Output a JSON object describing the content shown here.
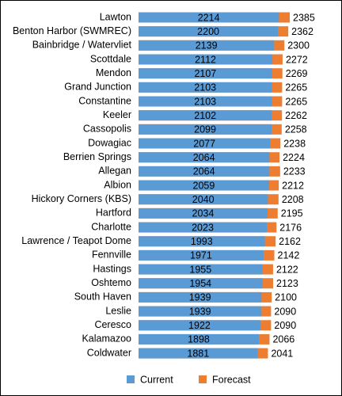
{
  "chart_data": {
    "type": "bar",
    "orientation": "horizontal",
    "overlap": true,
    "categories": [
      "Lawton",
      "Benton Harbor (SWMREC)",
      "Bainbridge / Watervliet",
      "Scottdale",
      "Mendon",
      "Grand Junction",
      "Constantine",
      "Keeler",
      "Cassopolis",
      "Dowagiac",
      "Berrien Springs",
      "Allegan",
      "Albion",
      "Hickory Corners (KBS)",
      "Hartford",
      "Charlotte",
      "Lawrence / Teapot Dome",
      "Fennville",
      "Hastings",
      "Oshtemo",
      "South Haven",
      "Leslie",
      "Ceresco",
      "Kalamazoo",
      "Coldwater"
    ],
    "series": [
      {
        "name": "Current",
        "color": "#5b9bd5",
        "values": [
          2214,
          2200,
          2139,
          2112,
          2107,
          2103,
          2103,
          2102,
          2099,
          2077,
          2064,
          2064,
          2059,
          2040,
          2034,
          2023,
          1993,
          1971,
          1955,
          1954,
          1939,
          1939,
          1922,
          1898,
          1881
        ]
      },
      {
        "name": "Forecast",
        "color": "#ed7d31",
        "values": [
          2385,
          2362,
          2300,
          2272,
          2269,
          2265,
          2265,
          2262,
          2258,
          2238,
          2224,
          2233,
          2212,
          2208,
          2195,
          2176,
          2162,
          2142,
          2122,
          2123,
          2100,
          2090,
          2090,
          2066,
          2041
        ]
      }
    ]
  }
}
